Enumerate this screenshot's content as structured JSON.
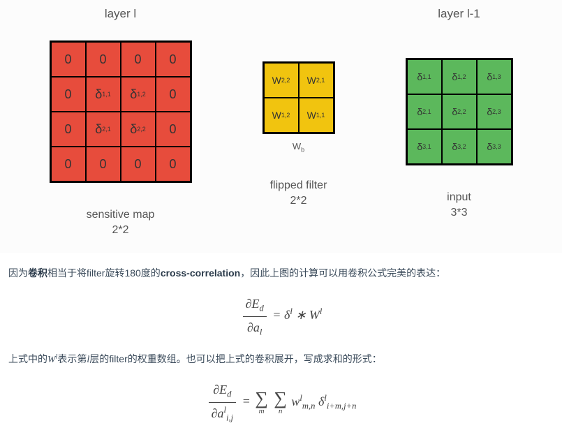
{
  "diagram": {
    "col1": {
      "top_label": "layer l",
      "grid": {
        "rows": 4,
        "cols": 4,
        "cell_size": 50,
        "bg_color": "#e74c3c",
        "cells": [
          [
            "0",
            "0",
            "0",
            "0"
          ],
          [
            "0",
            "δ<sub>1,1</sub>",
            "δ<sub>1,2</sub>",
            "0"
          ],
          [
            "0",
            "δ<sub>2,1</sub>",
            "δ<sub>2,2</sub>",
            "0"
          ],
          [
            "0",
            "0",
            "0",
            "0"
          ]
        ]
      },
      "bottom_label_1": "sensitive map",
      "bottom_label_2": "2*2"
    },
    "col2": {
      "top_label": "",
      "grid": {
        "rows": 2,
        "cols": 2,
        "cell_size": 50,
        "bg_color": "#f1c40f",
        "cells": [
          [
            "W<sub>2,2</sub>",
            "W<sub>2,1</sub>"
          ],
          [
            "W<sub>1,2</sub>",
            "W<sub>1,1</sub>"
          ]
        ]
      },
      "sub_label": "W<sub>b</sub>",
      "bottom_label_1": "flipped filter",
      "bottom_label_2": "2*2"
    },
    "col3": {
      "top_label": "layer l-1",
      "grid": {
        "rows": 3,
        "cols": 3,
        "cell_size": 50,
        "bg_color": "#5cb85c",
        "cells": [
          [
            "δ<sub>1,1</sub>",
            "δ<sub>1,2</sub>",
            "δ<sub>1,3</sub>"
          ],
          [
            "δ<sub>2,1</sub>",
            "δ<sub>2,2</sub>",
            "δ<sub>2,3</sub>"
          ],
          [
            "δ<sub>3,1</sub>",
            "δ<sub>3,2</sub>",
            "δ<sub>3,3</sub>"
          ]
        ]
      },
      "bottom_label_1": "input",
      "bottom_label_2": "3*3"
    }
  },
  "text": {
    "para1_pre": "因为",
    "para1_bold1": "卷积",
    "para1_mid": "相当于将filter旋转180度的",
    "para1_bold2": "cross-correlation",
    "para1_post": "，因此上图的计算可以用卷积公式完美的表达：",
    "formula1_num": "∂E<sub>d</sub>",
    "formula1_den": "∂a<sub>l</sub>",
    "formula1_rhs": "= δ<sup>l</sup> ∗ W<sup>l</sup>",
    "para2_pre": "上式中的",
    "para2_math1": "W<sup>l</sup>",
    "para2_mid1": "表示第",
    "para2_math2": "l",
    "para2_mid2": "层的filter的权重数组。也可以把上式的卷积展开，写成求和的形式：",
    "formula2_num": "∂E<sub>d</sub>",
    "formula2_den": "∂a<sup>l</sup><sub>i,j</sub>",
    "formula2_eq": "=",
    "formula2_sum1": "m",
    "formula2_sum2": "n",
    "formula2_rhs": "w<sup>l</sup><sub>m,n</sub> δ<sup>l</sup><sub>i+m,j+n</sub>"
  },
  "colors": {
    "red": "#e74c3c",
    "yellow": "#f1c40f",
    "green": "#5cb85c",
    "text": "#3a4a5a",
    "bg": "#ffffff"
  }
}
